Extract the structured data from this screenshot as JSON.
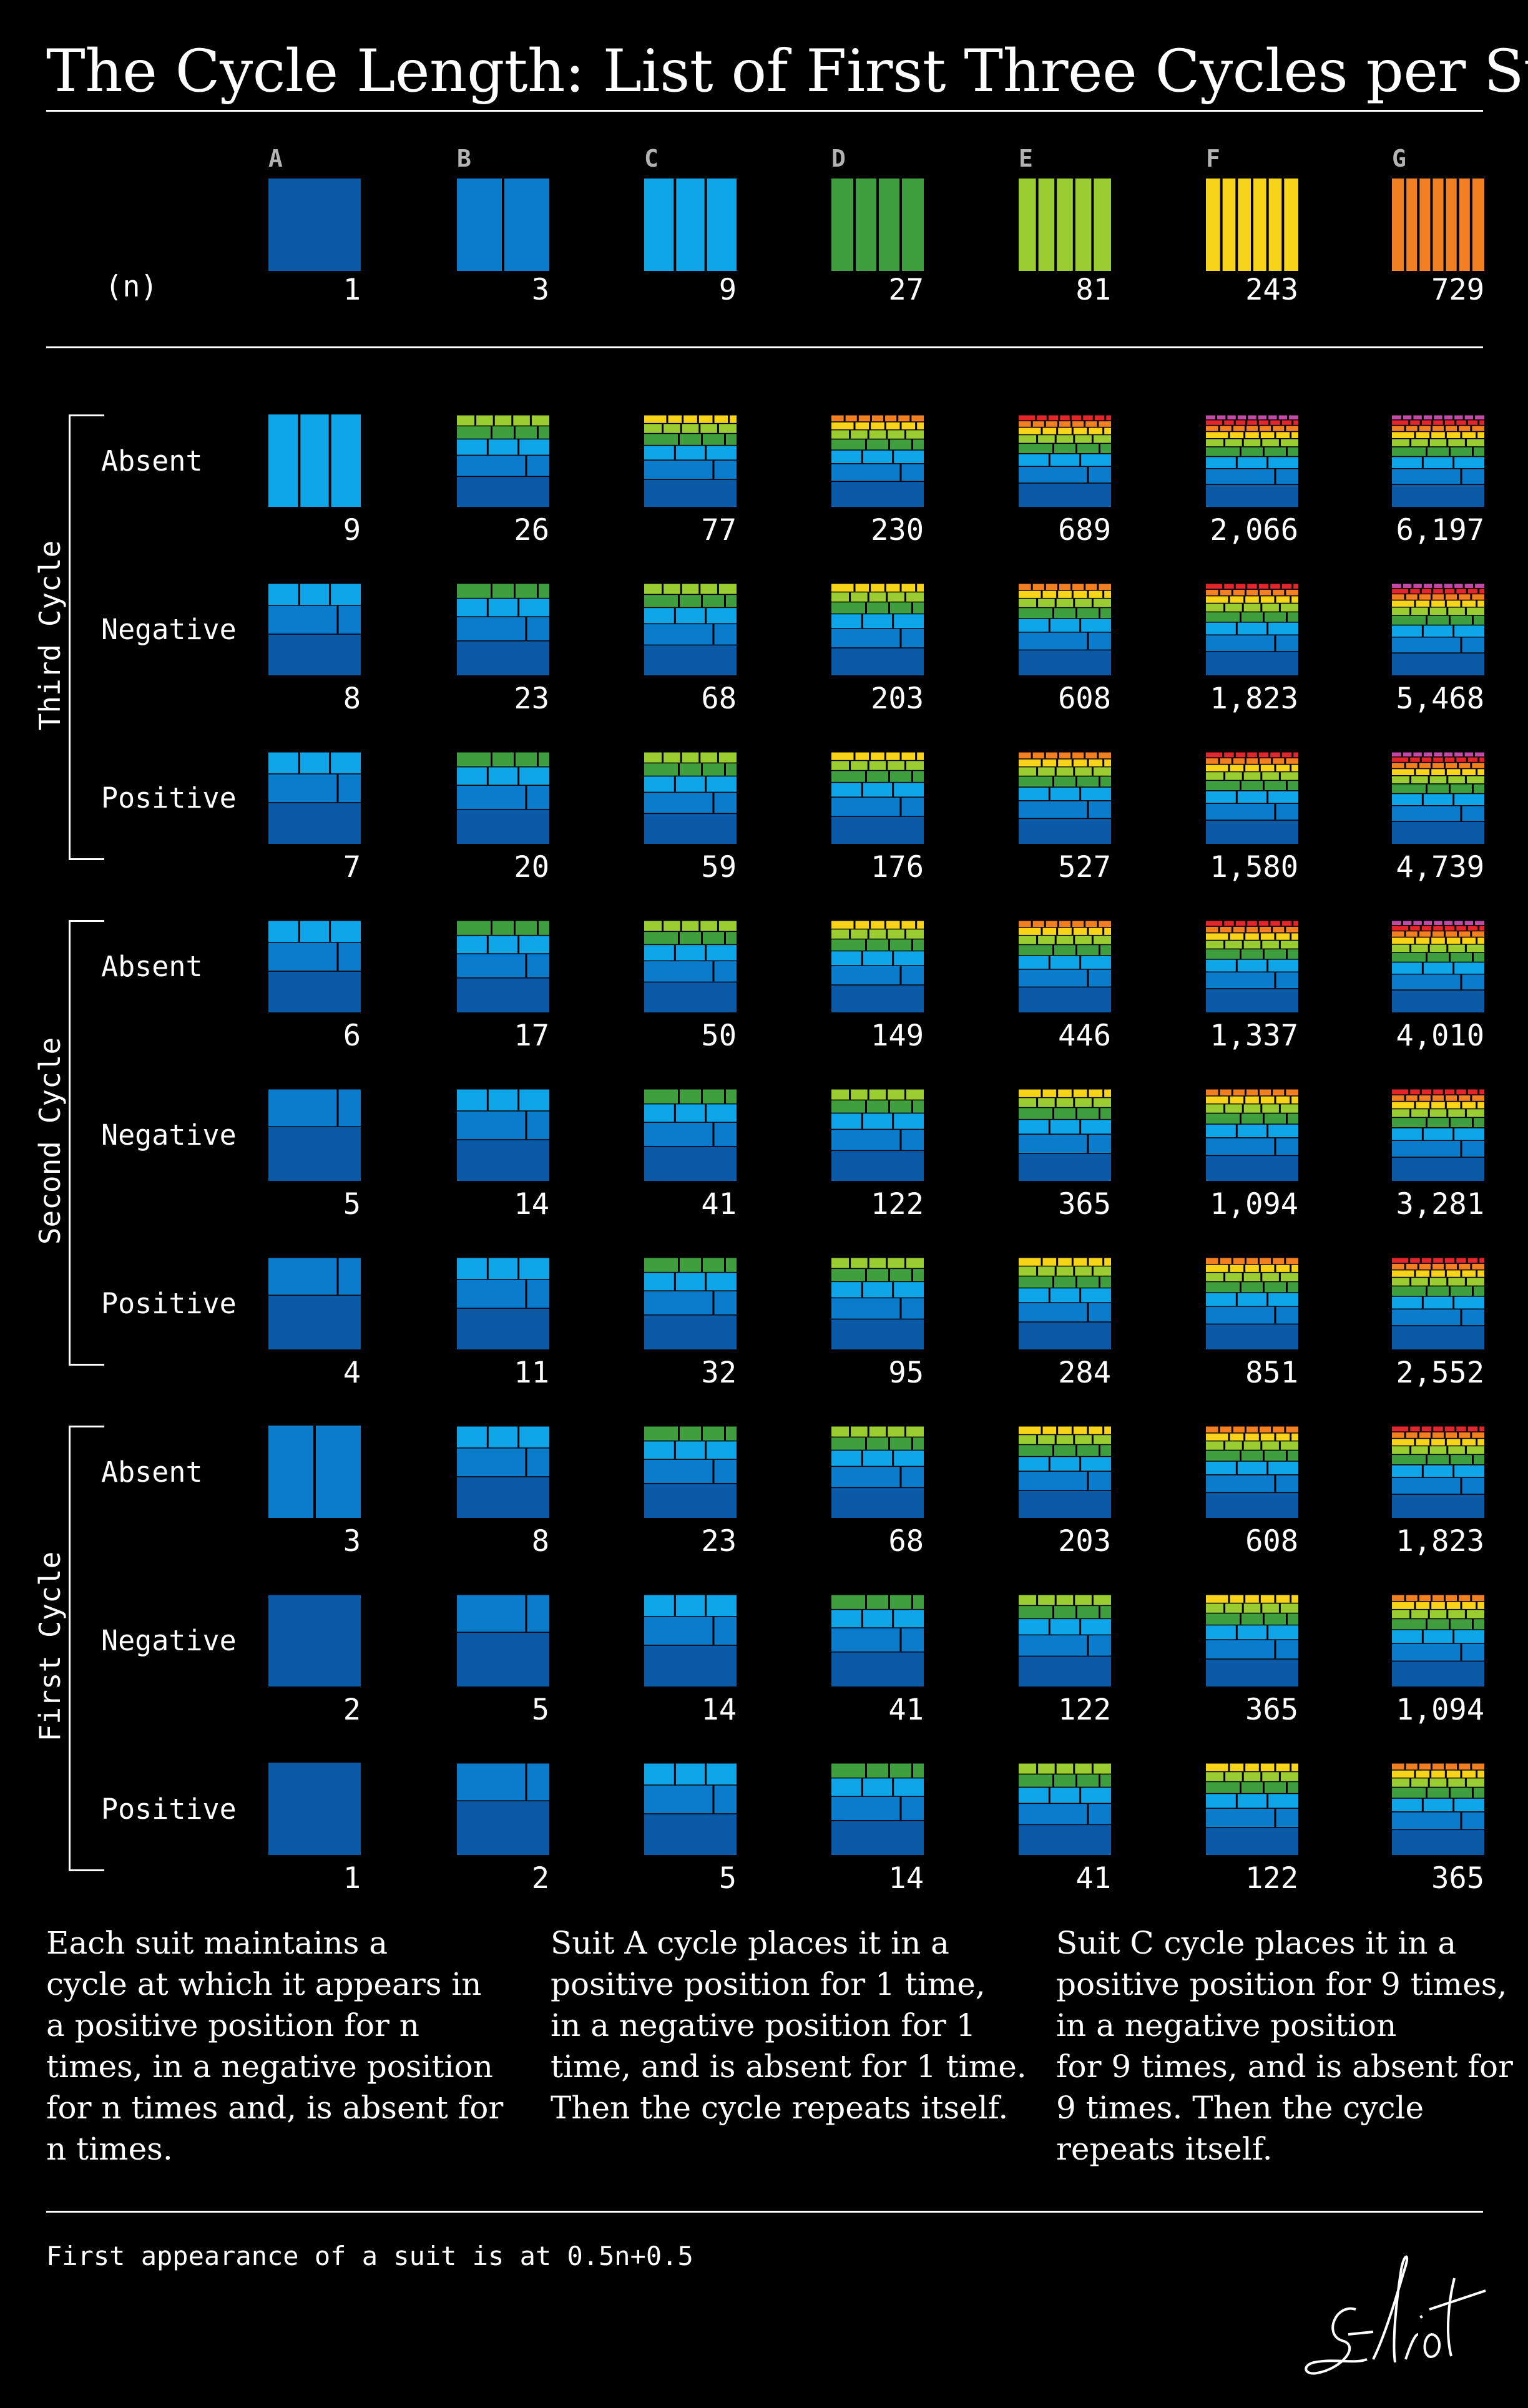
{
  "title": "The Cycle Length: List of First Three Cycles per Suit",
  "n_label": "(n)",
  "suits": [
    {
      "letter": "A",
      "n": "1",
      "color": "#0a5aa8"
    },
    {
      "letter": "B",
      "n": "3",
      "color": "#0b7ccc"
    },
    {
      "letter": "C",
      "n": "9",
      "color": "#0ea5e9"
    },
    {
      "letter": "D",
      "n": "27",
      "color": "#3f9f3f"
    },
    {
      "letter": "E",
      "n": "81",
      "color": "#9acd32"
    },
    {
      "letter": "F",
      "n": "243",
      "color": "#f7d31a"
    },
    {
      "letter": "G",
      "n": "729",
      "color": "#f27f22"
    }
  ],
  "extra_colors": {
    "H": "#e3262b",
    "I": "#c04aa6"
  },
  "groups": [
    {
      "label": "Third Cycle",
      "rows": [
        {
          "label": "Absent",
          "values": [
            "9",
            "26",
            "77",
            "230",
            "689",
            "2,066",
            "6,197"
          ]
        },
        {
          "label": "Negative",
          "values": [
            "8",
            "23",
            "68",
            "203",
            "608",
            "1,823",
            "5,468"
          ]
        },
        {
          "label": "Positive",
          "values": [
            "7",
            "20",
            "59",
            "176",
            "527",
            "1,580",
            "4,739"
          ]
        }
      ]
    },
    {
      "label": "Second Cycle",
      "rows": [
        {
          "label": "Absent",
          "values": [
            "6",
            "17",
            "50",
            "149",
            "446",
            "1,337",
            "4,010"
          ]
        },
        {
          "label": "Negative",
          "values": [
            "5",
            "14",
            "41",
            "122",
            "365",
            "1,094",
            "3,281"
          ]
        },
        {
          "label": "Positive",
          "values": [
            "4",
            "11",
            "32",
            "95",
            "284",
            "851",
            "2,552"
          ]
        }
      ]
    },
    {
      "label": "First Cycle",
      "rows": [
        {
          "label": "Absent",
          "values": [
            "3",
            "8",
            "23",
            "68",
            "203",
            "608",
            "1,823"
          ]
        },
        {
          "label": "Negative",
          "values": [
            "2",
            "5",
            "14",
            "41",
            "122",
            "365",
            "1,094"
          ]
        },
        {
          "label": "Positive",
          "values": [
            "1",
            "2",
            "5",
            "14",
            "41",
            "122",
            "365"
          ]
        }
      ]
    }
  ],
  "paragraphs": [
    "Each suit maintains a\ncycle at which it appears in\na positive position for n\ntimes, in a negative position\nfor n times and, is absent for\nn times.",
    "Suit A cycle places it in a\npositive position for 1 time,\nin a negative position for 1\ntime, and is absent for 1 time.\nThen the cycle repeats itself.",
    "Suit C cycle places it in a\npositive position for 9 times,\nin a negative position\nfor 9 times, and is absent for\n9 times. Then the cycle\nrepeats itself."
  ],
  "footer": "First appearance of a suit is at 0.5n+0.5",
  "signature": "Eliot"
}
